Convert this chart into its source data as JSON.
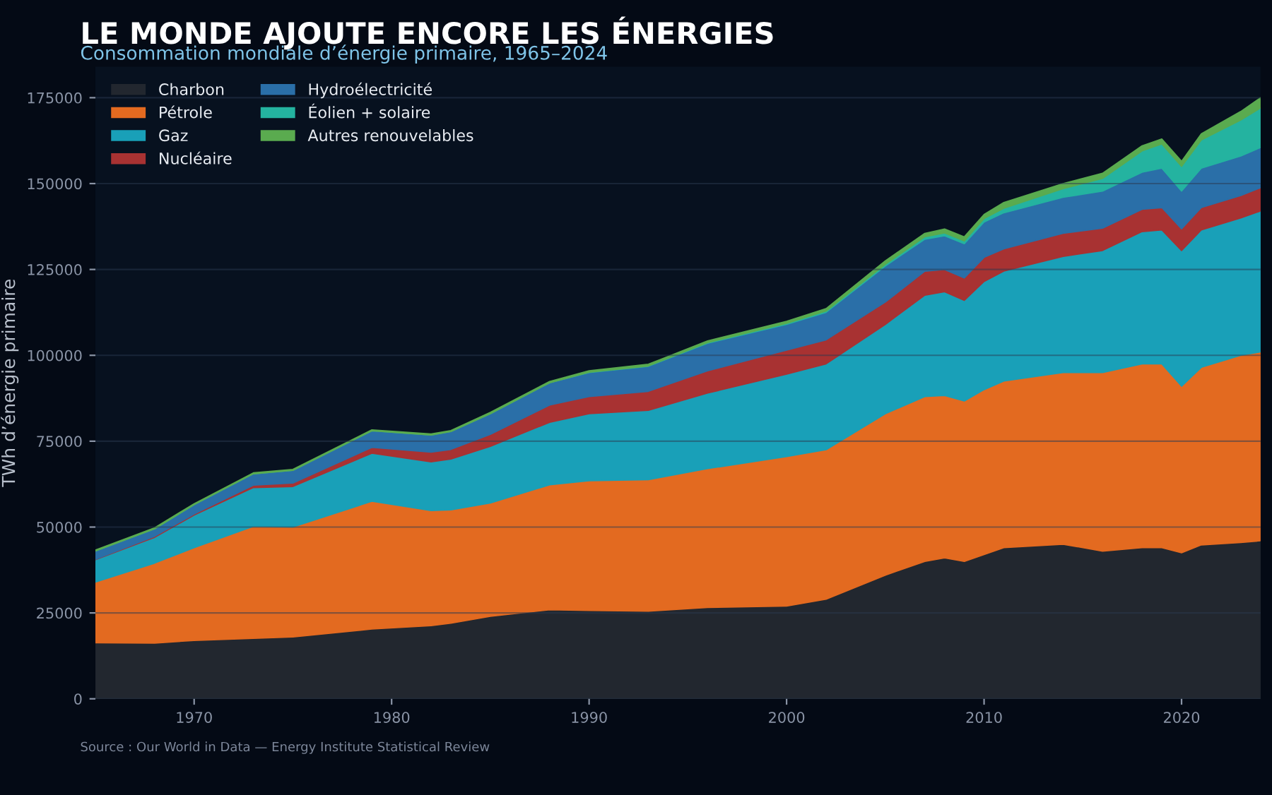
{
  "chart_data": {
    "type": "area",
    "stacked": true,
    "title": "LE MONDE AJOUTE ENCORE LES ÉNERGIES",
    "subtitle": "Consommation mondiale d’énergie primaire, 1965–2024",
    "ylabel": "TWh d’énergie primaire",
    "annotations": [
      "Source : Our World in Data — Energy Institute Statistical Review"
    ],
    "x": [
      1965,
      1968,
      1970,
      1973,
      1975,
      1979,
      1982,
      1983,
      1985,
      1988,
      1990,
      1993,
      1996,
      2000,
      2002,
      2005,
      2007,
      2008,
      2009,
      2010,
      2011,
      2014,
      2016,
      2018,
      2019,
      2020,
      2021,
      2023,
      2024
    ],
    "series": [
      {
        "name": "Charbon",
        "color": "#22272f",
        "values": [
          16300,
          16200,
          17000,
          17600,
          18000,
          20300,
          21300,
          22000,
          24000,
          25900,
          25700,
          25500,
          26600,
          27000,
          29000,
          36000,
          40000,
          41000,
          40000,
          42000,
          44000,
          45000,
          43000,
          44000,
          44000,
          42500,
          44800,
          45500,
          46000
        ]
      },
      {
        "name": "Pétrole",
        "color": "#e36a20",
        "values": [
          17700,
          23300,
          27000,
          32600,
          32000,
          37200,
          33500,
          33000,
          33000,
          36400,
          37800,
          38300,
          40400,
          43500,
          43500,
          47000,
          48000,
          47300,
          46700,
          48000,
          48500,
          50000,
          52000,
          53500,
          53500,
          48500,
          51700,
          54500,
          55000
        ]
      },
      {
        "name": "Gaz",
        "color": "#19a0b8",
        "values": [
          6500,
          7500,
          9500,
          11300,
          11800,
          14000,
          14200,
          14800,
          16500,
          18200,
          19500,
          20200,
          22000,
          24000,
          25000,
          26000,
          29500,
          30200,
          29300,
          31500,
          32000,
          33800,
          35500,
          38500,
          39000,
          39500,
          40000,
          40000,
          41000
        ]
      },
      {
        "name": "Nucléaire",
        "color": "#a83232",
        "values": [
          100,
          300,
          300,
          700,
          1000,
          1700,
          2800,
          2800,
          3500,
          5000,
          5000,
          5500,
          6500,
          7000,
          7000,
          6500,
          7000,
          6500,
          6500,
          7000,
          6500,
          6700,
          6500,
          6500,
          6500,
          6300,
          6500,
          6500,
          6800
        ]
      },
      {
        "name": "Hydroélectricité",
        "color": "#2a6fa8",
        "values": [
          2400,
          2200,
          2700,
          3300,
          3700,
          4800,
          5000,
          5200,
          6000,
          6500,
          7000,
          7300,
          8000,
          7500,
          8000,
          10500,
          9300,
          9800,
          10000,
          10300,
          10500,
          10500,
          10800,
          10800,
          11500,
          11000,
          11500,
          11500,
          11700
        ]
      },
      {
        "name": "Éolien + solaire",
        "color": "#24b3a0",
        "values": [
          0,
          0,
          0,
          0,
          0,
          0,
          0,
          0,
          0,
          0,
          100,
          100,
          200,
          300,
          400,
          500,
          700,
          800,
          800,
          1000,
          1300,
          2500,
          3700,
          6200,
          7000,
          7200,
          8200,
          10500,
          11500
        ]
      },
      {
        "name": "Autres renouvelables",
        "color": "#5aab4f",
        "values": [
          300,
          300,
          300,
          300,
          300,
          300,
          300,
          300,
          400,
          400,
          400,
          500,
          500,
          600,
          700,
          1000,
          1000,
          1200,
          1200,
          1200,
          1700,
          1500,
          1500,
          1500,
          1500,
          1500,
          1800,
          2500,
          3000
        ]
      }
    ],
    "xlim": [
      1965,
      2024
    ],
    "xticks": [
      1970,
      1980,
      1990,
      2000,
      2010,
      2020
    ],
    "ylim": [
      0,
      184000
    ],
    "yticks": [
      0,
      25000,
      50000,
      75000,
      100000,
      125000,
      150000,
      175000
    ],
    "grid": "y",
    "legend": "top left"
  }
}
